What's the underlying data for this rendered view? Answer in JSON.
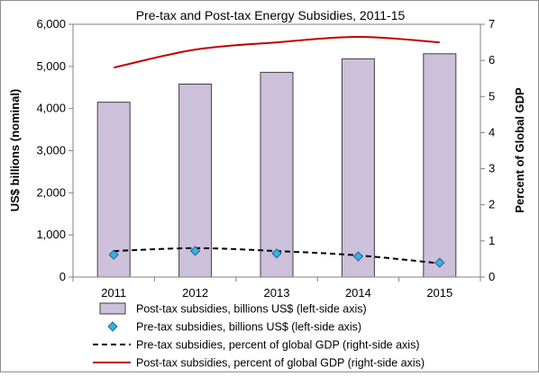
{
  "chart_data": {
    "type": "bar",
    "title": "Pre-tax and Post-tax Energy Subsidies, 2011-15",
    "categories": [
      "2011",
      "2012",
      "2013",
      "2014",
      "2015"
    ],
    "ylabel": "US$ billions (nominal)",
    "ylabel_right": "Percent of Global GDP",
    "ylim": [
      0,
      6000
    ],
    "ylim_right": [
      0,
      7
    ],
    "yticks": [
      "0",
      "1,000",
      "2,000",
      "3,000",
      "4,000",
      "5,000",
      "6,000"
    ],
    "yticks_right": [
      "0",
      "1",
      "2",
      "3",
      "4",
      "5",
      "6",
      "7"
    ],
    "grid": false,
    "legend_position": "bottom",
    "series": [
      {
        "name": "Post-tax subsidies, billions US$ (left-side axis)",
        "type": "bar",
        "axis": "left",
        "values": [
          4150,
          4580,
          4860,
          5180,
          5300
        ],
        "color": "#ccc0da"
      },
      {
        "name": "Pre-tax subsidies, billions US$ (left-side axis)",
        "type": "scatter",
        "axis": "left",
        "values": [
          530,
          620,
          560,
          490,
          340
        ],
        "color": "#33b3e6"
      },
      {
        "name": "Pre-tax subsidies, percent of global GDP (right-side axis)",
        "type": "line",
        "axis": "right",
        "style": "dashed",
        "values": [
          0.72,
          0.8,
          0.72,
          0.6,
          0.38
        ],
        "color": "#000000"
      },
      {
        "name": "Post-tax subsidies, percent of global GDP (right-side axis)",
        "type": "line",
        "axis": "right",
        "values": [
          5.8,
          6.3,
          6.5,
          6.65,
          6.5
        ],
        "color": "#c00000"
      }
    ]
  }
}
